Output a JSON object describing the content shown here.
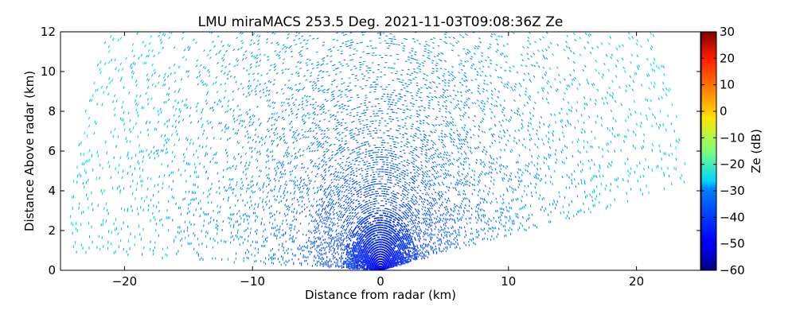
{
  "chart_data": {
    "type": "heatmap",
    "subtype": "radar RHI scan",
    "title": "LMU miraMACS 253.5 Deg. 2021-11-03T09:08:36Z  Ze",
    "xlabel": "Distance from radar (km)",
    "ylabel": "Distance Above radar  (km)",
    "xlim": [
      -25,
      25
    ],
    "ylim": [
      0,
      12
    ],
    "x_ticks": [
      -20,
      -10,
      0,
      10,
      20
    ],
    "x_tick_labels": [
      "−20",
      "−10",
      "0",
      "10",
      "20"
    ],
    "y_ticks": [
      0,
      2,
      4,
      6,
      8,
      10,
      12
    ],
    "y_tick_labels": [
      "0",
      "2",
      "4",
      "6",
      "8",
      "10",
      "12"
    ],
    "scan": {
      "max_range_km": 24.5,
      "elevation_min_deg": 10,
      "elevation_max_deg": 178,
      "near_range_ze_db": -52,
      "far_range_ze_db": -30,
      "clutter": "sparse speckle; densest near radar, thinning with range"
    },
    "colorbar": {
      "label": "Ze (dB)",
      "colormap": "jet",
      "vmin": -60,
      "vmax": 30,
      "ticks": [
        30,
        20,
        10,
        0,
        -10,
        -20,
        -30,
        -40,
        -50,
        -60
      ],
      "tick_labels": [
        "30",
        "20",
        "10",
        "0",
        "−10",
        "−20",
        "−30",
        "−40",
        "−50",
        "−60"
      ]
    }
  }
}
